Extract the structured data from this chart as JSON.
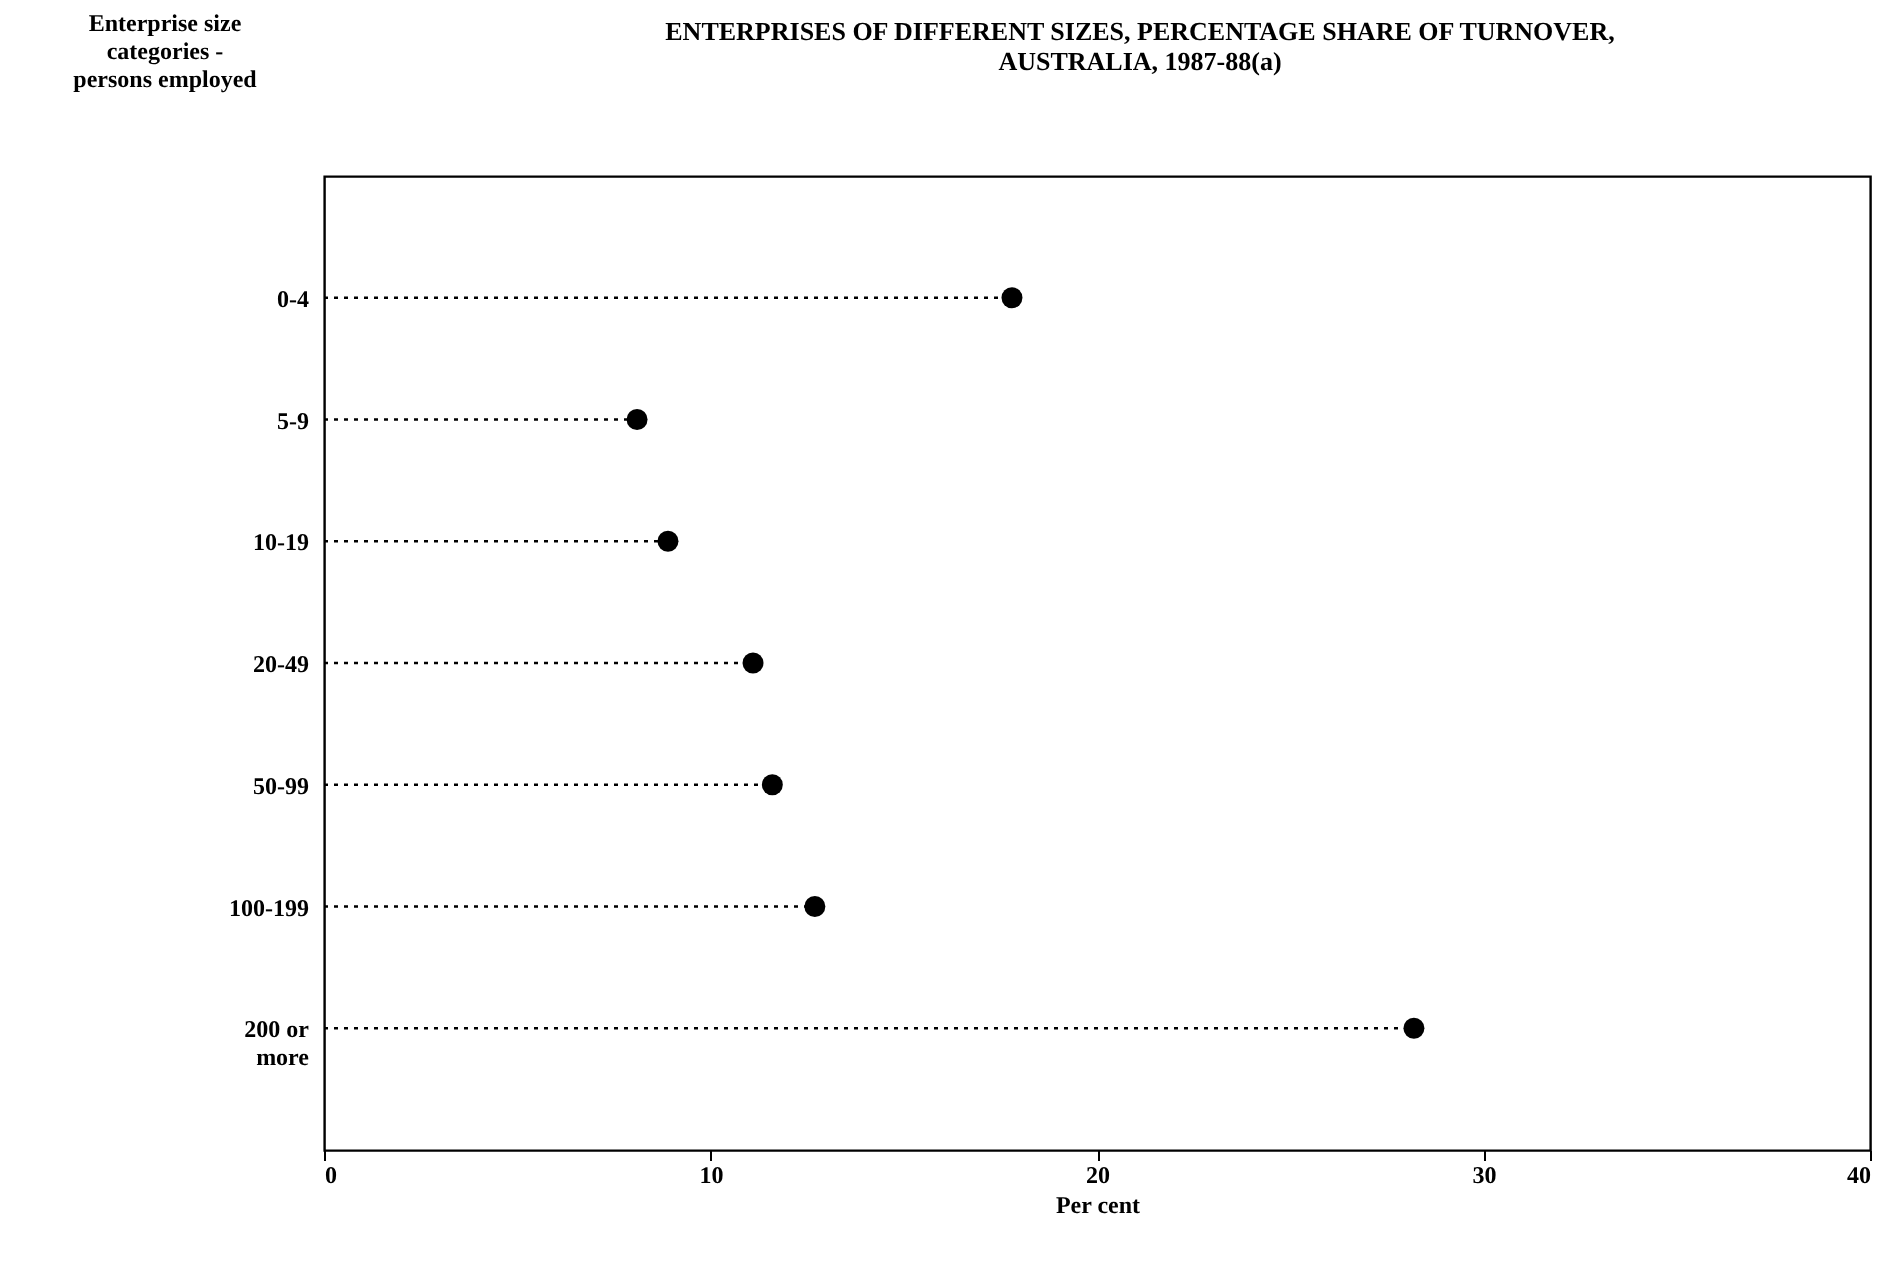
{
  "chart_data": {
    "type": "lollipop",
    "orientation": "horizontal",
    "title": "ENTERPRISES OF DIFFERENT SIZES, PERCENTAGE SHARE OF TURNOVER, AUSTRALIA, 1987-88(a)",
    "ylabel": "Enterprise size categories - persons employed",
    "xlabel": "Per cent",
    "categories": [
      "0-4",
      "5-9",
      "10-19",
      "20-49",
      "50-99",
      "100-199",
      "200 or more"
    ],
    "series": [
      {
        "color": "#000000",
        "values": [
          17.8,
          8.1,
          8.9,
          11.1,
          11.6,
          12.7,
          28.2
        ]
      }
    ],
    "xlim": [
      0,
      40
    ],
    "xticks": [
      0,
      10,
      20,
      30,
      40
    ],
    "marker": "circle",
    "line_style": "dotted"
  }
}
